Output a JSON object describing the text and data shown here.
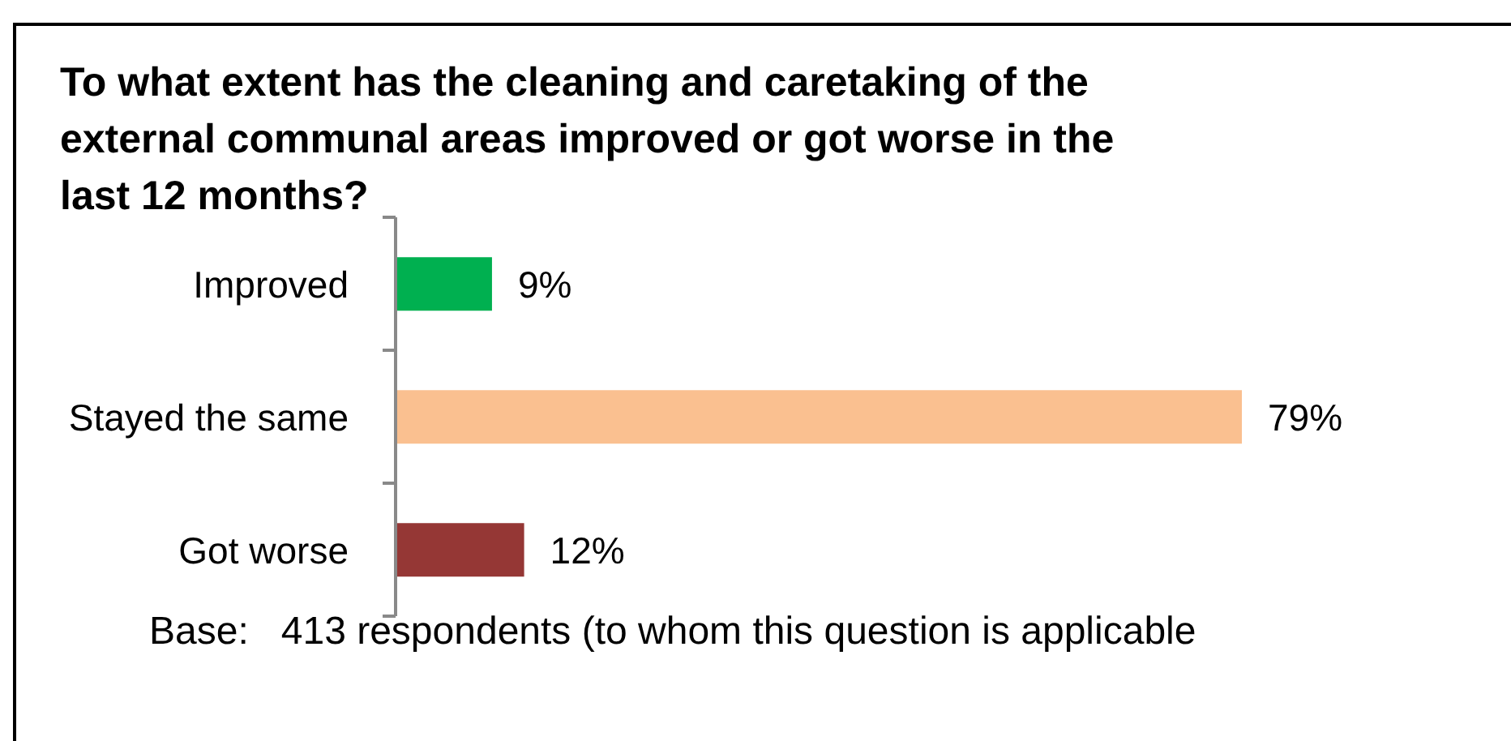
{
  "chart_data": {
    "type": "bar",
    "orientation": "horizontal",
    "title": "To what extent has the cleaning and caretaking of the external communal areas improved or got worse in the last 12 months?",
    "categories": [
      "Improved",
      "Stayed the same",
      "Got worse"
    ],
    "values": [
      9,
      79,
      12
    ],
    "colors": [
      "#00b050",
      "#fac090",
      "#953735"
    ],
    "value_labels": [
      "9%",
      "79%",
      "12%"
    ],
    "annotations": [
      "Base:   413 respondents (to whom this question is applicable"
    ]
  }
}
